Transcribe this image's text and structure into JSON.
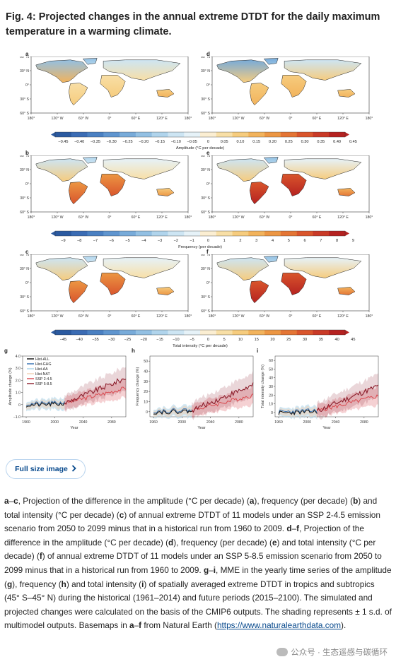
{
  "figure": {
    "title": "Fig. 4: Projected changes in the annual extreme DTDT for the daily maximum temperature in a warming climate."
  },
  "panels": {
    "letters": [
      "a",
      "b",
      "c",
      "d",
      "e",
      "f",
      "g",
      "h",
      "i"
    ],
    "lat_ticks": [
      "60° N",
      "30° N",
      "0°",
      "30° S",
      "60° S"
    ],
    "lon_ticks": [
      "180°",
      "120° W",
      "60° W",
      "0°",
      "60° E",
      "120° E",
      "180°"
    ]
  },
  "colorbars": [
    {
      "ticks": [
        "−0.45",
        "−0.40",
        "−0.35",
        "−0.30",
        "−0.25",
        "−0.20",
        "−0.15",
        "−0.10",
        "−0.05",
        "0",
        "0.05",
        "0.10",
        "0.15",
        "0.20",
        "0.25",
        "0.30",
        "0.35",
        "0.40",
        "0.45"
      ],
      "label": "Amplitude (°C per decade)"
    },
    {
      "ticks": [
        "−9",
        "−8",
        "−7",
        "−6",
        "−5",
        "−4",
        "−3",
        "−2",
        "−1",
        "0",
        "1",
        "2",
        "3",
        "4",
        "5",
        "6",
        "7",
        "8",
        "9"
      ],
      "label": "Frequency (per decade)"
    },
    {
      "ticks": [
        "−45",
        "−40",
        "−35",
        "−30",
        "−25",
        "−20",
        "−15",
        "−10",
        "−5",
        "0",
        "5",
        "10",
        "15",
        "20",
        "25",
        "30",
        "35",
        "40",
        "45"
      ],
      "label": "Total intensity (°C per decade)"
    }
  ],
  "colors": {
    "ramp": [
      "#2b5aa0",
      "#3b6cb4",
      "#4a80c2",
      "#5f95cf",
      "#78abd9",
      "#93c0e3",
      "#b0d4ec",
      "#cde5f3",
      "#e6f2f8",
      "#fbeed2",
      "#f8dfa6",
      "#f6cc7e",
      "#f2b35c",
      "#ec9643",
      "#e47535",
      "#d9552c",
      "#c93a27",
      "#b52220"
    ],
    "hist_all": "#111111",
    "hist_ghg": "#2f6db0",
    "hist_aa": "#a9d3ea",
    "hist_nat": "#f1d0b4",
    "ssp245": "#d9484e",
    "ssp585": "#8b1c2a",
    "link": "#06488c"
  },
  "timeseries": {
    "legend": [
      "Hist-ALL",
      "Hist-GHG",
      "Hist-AA",
      "Hist-NAT",
      "SSP 2-4.5",
      "SSP 5-8.5"
    ],
    "x_ticks": [
      "1960",
      "2000",
      "2040",
      "2080"
    ],
    "xlabel": "Year",
    "panels": [
      {
        "ylabel": "Amplitude change (%)",
        "yticks": [
          "−1.0",
          "0",
          "1.0",
          "2.0",
          "3.0",
          "4.0"
        ],
        "ylim": [
          -1.0,
          4.0
        ]
      },
      {
        "ylabel": "Frequency change (%)",
        "yticks": [
          "0",
          "10",
          "20",
          "30",
          "40",
          "50"
        ],
        "ylim": [
          -5,
          55
        ]
      },
      {
        "ylabel": "Total intensity change (%)",
        "yticks": [
          "0",
          "10",
          "20",
          "30",
          "40",
          "50",
          "60"
        ],
        "ylim": [
          -5,
          65
        ]
      }
    ]
  },
  "button": {
    "label": "Full size image"
  },
  "caption": {
    "p1": "a",
    "p2": "–",
    "p3": "c",
    "p4": ", Projection of the difference in the amplitude (°C per decade) (",
    "p5": "a",
    "p6": "), frequency (per decade) (",
    "p7": "b",
    "p8": ") and total intensity (°C per decade) (",
    "p9": "c",
    "p10": ") of annual extreme DTDT of 11 models under an SSP 2-4.5 emission scenario from 2050 to 2099 minus that in a historical run from 1960 to 2009. ",
    "p11": "d",
    "p12": "–",
    "p13": "f",
    "p14": ", Projection of the difference in the amplitude (°C per decade) (",
    "p15": "d",
    "p16": "), frequency (per decade) (",
    "p17": "e",
    "p18": ") and total intensity (°C per decade) (",
    "p19": "f",
    "p20": ") of annual extreme DTDT of 11 models under an SSP 5-8.5 emission scenario from 2050 to 2099 minus that in a historical run from 1960 to 2009. ",
    "p21": "g",
    "p22": "–",
    "p23": "i",
    "p24": ", MME in the yearly time series of the amplitude (",
    "p25": "g",
    "p26": "), frequency (",
    "p27": "h",
    "p28": ") and total intensity (",
    "p29": "i",
    "p30": ") of spatially averaged extreme DTDT in tropics and subtropics (45° S–45° N) during the historical (1961–2014) and future periods (2015–2100). The simulated and projected changes were calculated on the basis of the CMIP6 outputs. The shading represents ± 1 s.d. of multimodel outputs. Basemaps in ",
    "p31": "a",
    "p32": "–",
    "p33": "f",
    "p34": " from Natural Earth (",
    "link": "https://www.naturalearthdata.com",
    "p35": ")."
  },
  "watermark": {
    "text": "公众号 · 生态遥感与碳循环"
  }
}
